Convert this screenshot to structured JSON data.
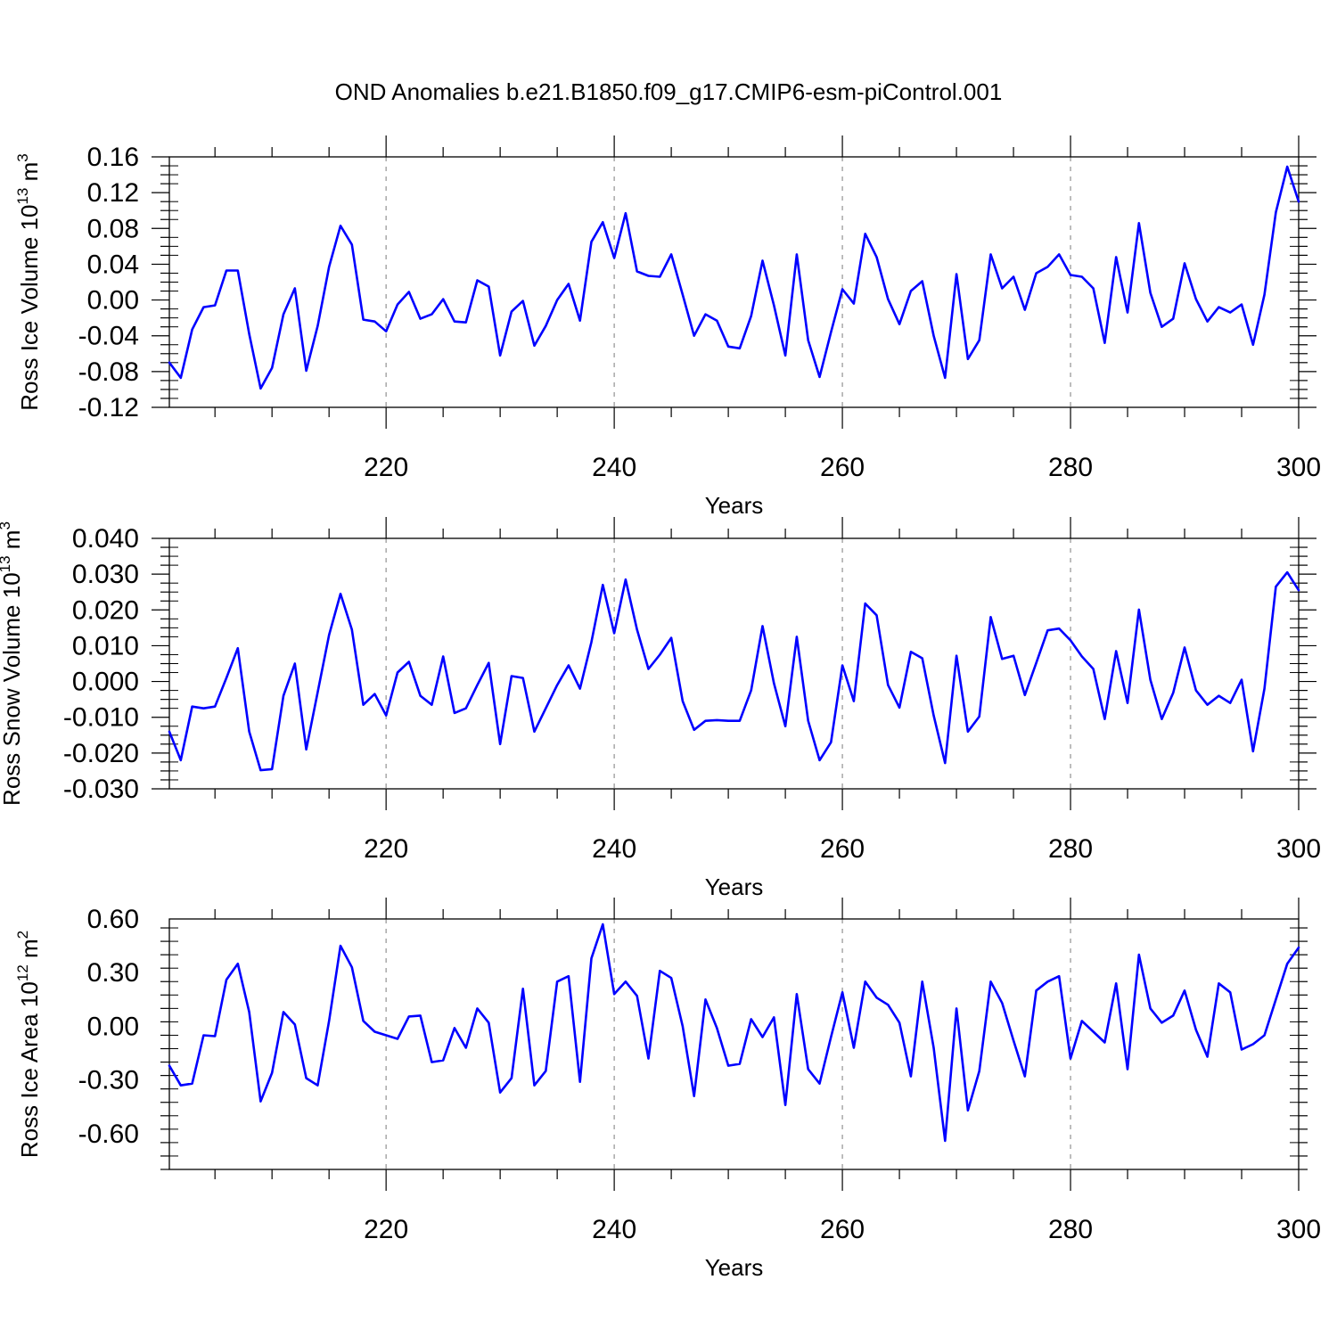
{
  "title": "OND Anomalies b.e21.B1850.f09_g17.CMIP6-esm-piControl.001",
  "line_color": "#0000ff",
  "chart_data": [
    {
      "type": "line",
      "ylabel": "Ross Ice Volume 10",
      "ylabel_sup": "13",
      "ylabel_unit": " m",
      "ylabel_unit_sup": "3",
      "xlabel": "Years",
      "xlim": [
        201,
        300
      ],
      "ylim": [
        -0.12,
        0.16
      ],
      "yticks": [
        -0.12,
        -0.08,
        -0.04,
        0.0,
        0.04,
        0.08,
        0.12,
        0.16
      ],
      "ytick_labels": [
        "-0.12",
        "-0.08",
        "-0.04",
        "0.00",
        "0.04",
        "0.08",
        "0.12",
        "0.16"
      ],
      "xticks": [
        220,
        240,
        260,
        280,
        300
      ],
      "xtick_labels": [
        "220",
        "240",
        "260",
        "280",
        "300"
      ],
      "x_start": 201,
      "values": [
        -0.07,
        -0.087,
        -0.033,
        -0.008,
        -0.006,
        0.033,
        0.033,
        -0.038,
        -0.099,
        -0.076,
        -0.016,
        0.013,
        -0.079,
        -0.029,
        0.037,
        0.083,
        0.062,
        -0.022,
        -0.024,
        -0.035,
        -0.005,
        0.009,
        -0.021,
        -0.016,
        0.001,
        -0.024,
        -0.025,
        0.022,
        0.015,
        -0.062,
        -0.013,
        -0.001,
        -0.051,
        -0.029,
        0.0,
        0.018,
        -0.023,
        0.065,
        0.087,
        0.047,
        0.097,
        0.032,
        0.027,
        0.026,
        0.051,
        0.006,
        -0.04,
        -0.016,
        -0.023,
        -0.052,
        -0.054,
        -0.018,
        0.044,
        -0.006,
        -0.062,
        0.051,
        -0.045,
        -0.086,
        -0.036,
        0.012,
        -0.004,
        0.074,
        0.048,
        0.001,
        -0.027,
        0.01,
        0.021,
        -0.04,
        -0.087,
        0.029,
        -0.066,
        -0.045,
        0.051,
        0.013,
        0.026,
        -0.011,
        0.03,
        0.037,
        0.051,
        0.028,
        0.026,
        0.013,
        -0.048,
        0.048,
        -0.014,
        0.086,
        0.008,
        -0.03,
        -0.021,
        0.041,
        0.001,
        -0.024,
        -0.008,
        -0.014,
        -0.005,
        -0.05,
        0.006,
        0.098,
        0.149,
        0.11
      ]
    },
    {
      "type": "line",
      "ylabel": "Ross Snow Volume 10",
      "ylabel_sup": "13",
      "ylabel_unit": " m",
      "ylabel_unit_sup": "3",
      "xlabel": "Years",
      "xlim": [
        201,
        300
      ],
      "ylim": [
        -0.03,
        0.04
      ],
      "yticks": [
        -0.03,
        -0.02,
        -0.01,
        0.0,
        0.01,
        0.02,
        0.03,
        0.04
      ],
      "ytick_labels": [
        "-0.030",
        "-0.020",
        "-0.010",
        "0.000",
        "0.010",
        "0.020",
        "0.030",
        "0.040"
      ],
      "xticks": [
        220,
        240,
        260,
        280,
        300
      ],
      "xtick_labels": [
        "220",
        "240",
        "260",
        "280",
        "300"
      ],
      "x_start": 201,
      "values": [
        -0.014,
        -0.022,
        -0.007,
        -0.0075,
        -0.007,
        0.001,
        0.0093,
        -0.014,
        -0.0248,
        -0.0245,
        -0.004,
        0.005,
        -0.019,
        -0.003,
        0.013,
        0.0245,
        0.0145,
        -0.0065,
        -0.0035,
        -0.0095,
        0.0025,
        0.0055,
        -0.004,
        -0.0065,
        0.007,
        -0.0088,
        -0.0075,
        -0.001,
        0.0052,
        -0.0175,
        0.0015,
        0.001,
        -0.014,
        -0.0075,
        -0.001,
        0.0045,
        -0.002,
        0.011,
        0.027,
        0.0135,
        0.0285,
        0.0145,
        0.0035,
        0.0075,
        0.0122,
        -0.0055,
        -0.0135,
        -0.011,
        -0.0108,
        -0.011,
        -0.011,
        -0.0025,
        0.0155,
        -0.0005,
        -0.0125,
        0.0125,
        -0.011,
        -0.022,
        -0.017,
        0.0045,
        -0.0055,
        0.0218,
        0.0185,
        -0.001,
        -0.0073,
        0.0083,
        0.0065,
        -0.0095,
        -0.0228,
        0.0072,
        -0.014,
        -0.0098,
        0.018,
        0.0063,
        0.0072,
        -0.0038,
        0.0052,
        0.0143,
        0.0148,
        0.0115,
        0.007,
        0.0035,
        -0.0105,
        0.0085,
        -0.006,
        0.0201,
        0.0005,
        -0.0105,
        -0.0032,
        0.0095,
        -0.0025,
        -0.0065,
        -0.004,
        -0.006,
        0.0005,
        -0.0195,
        -0.002,
        0.0265,
        0.0305,
        0.0255
      ]
    },
    {
      "type": "line",
      "ylabel": "Ross Ice Area 10",
      "ylabel_sup": "12",
      "ylabel_unit": " m",
      "ylabel_unit_sup": "2",
      "xlabel": "Years",
      "xlim": [
        201,
        300
      ],
      "ylim": [
        -0.8,
        0.6
      ],
      "yticks": [
        -0.6,
        -0.3,
        0.0,
        0.3,
        0.6
      ],
      "ytick_labels": [
        "-0.60",
        "-0.30",
        "0.00",
        "0.30",
        "0.60"
      ],
      "xticks": [
        220,
        240,
        260,
        280,
        300
      ],
      "xtick_labels": [
        "220",
        "240",
        "260",
        "280",
        "300"
      ],
      "x_start": 201,
      "values": [
        -0.22,
        -0.33,
        -0.32,
        -0.05,
        -0.055,
        0.26,
        0.35,
        0.08,
        -0.42,
        -0.26,
        0.08,
        0.01,
        -0.29,
        -0.33,
        0.03,
        0.45,
        0.33,
        0.03,
        -0.03,
        -0.05,
        -0.07,
        0.055,
        0.06,
        -0.2,
        -0.19,
        -0.01,
        -0.12,
        0.1,
        0.02,
        -0.37,
        -0.29,
        0.21,
        -0.33,
        -0.25,
        0.25,
        0.28,
        -0.31,
        0.38,
        0.57,
        0.18,
        0.25,
        0.17,
        -0.18,
        0.31,
        0.27,
        0.0,
        -0.39,
        0.15,
        -0.01,
        -0.22,
        -0.21,
        0.04,
        -0.06,
        0.05,
        -0.44,
        0.18,
        -0.24,
        -0.32,
        -0.06,
        0.19,
        -0.12,
        0.25,
        0.16,
        0.12,
        0.02,
        -0.28,
        0.25,
        -0.12,
        -0.64,
        0.1,
        -0.47,
        -0.25,
        0.25,
        0.13,
        -0.08,
        -0.28,
        0.2,
        0.25,
        0.28,
        -0.18,
        0.03,
        -0.03,
        -0.09,
        0.24,
        -0.24,
        0.4,
        0.1,
        0.02,
        0.06,
        0.2,
        -0.02,
        -0.17,
        0.24,
        0.19,
        -0.13,
        -0.1,
        -0.05,
        0.15,
        0.35,
        0.44
      ]
    }
  ]
}
